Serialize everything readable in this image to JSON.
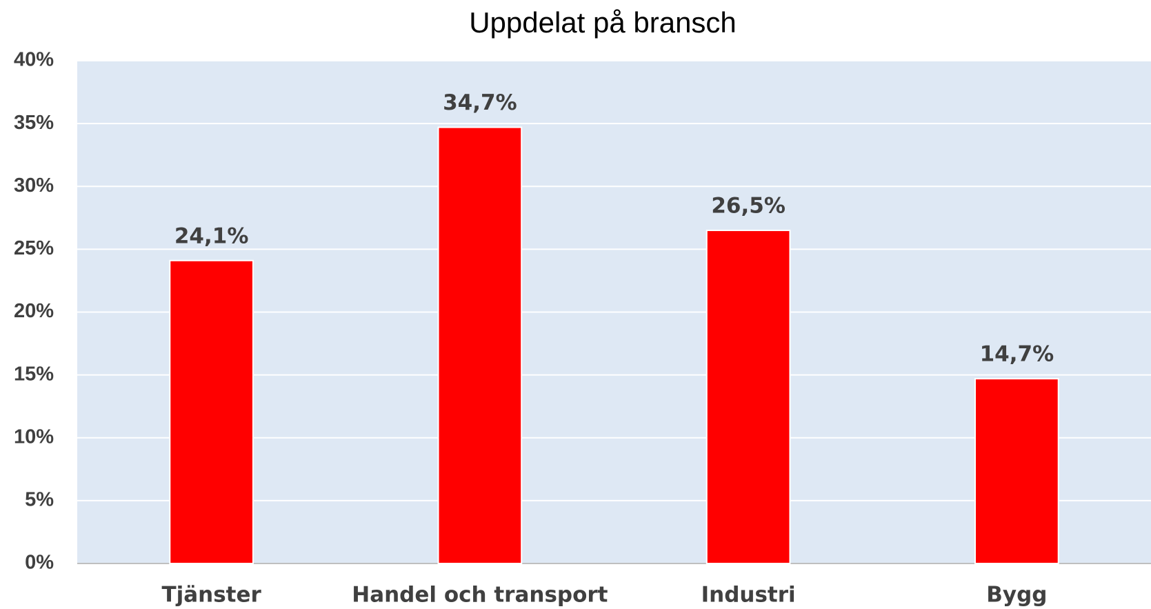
{
  "chart_data": {
    "type": "bar",
    "title": "Uppdelat på bransch",
    "categories": [
      "Tjänster",
      "Handel och transport",
      "Industri",
      "Bygg"
    ],
    "values": [
      24.1,
      34.7,
      26.5,
      14.7
    ],
    "value_labels": [
      "24,1%",
      "34,7%",
      "26,5%",
      "14,7%"
    ],
    "color": "#ff0000",
    "ylim": [
      0,
      40
    ],
    "yticks": [
      {
        "value": 0,
        "label": "0%"
      },
      {
        "value": 5,
        "label": "5%"
      },
      {
        "value": 10,
        "label": "10%"
      },
      {
        "value": 15,
        "label": "15%"
      },
      {
        "value": 20,
        "label": "20%"
      },
      {
        "value": 25,
        "label": "25%"
      },
      {
        "value": 30,
        "label": "30%"
      },
      {
        "value": 35,
        "label": "35%"
      },
      {
        "value": 40,
        "label": "40%"
      }
    ],
    "grid": true
  }
}
